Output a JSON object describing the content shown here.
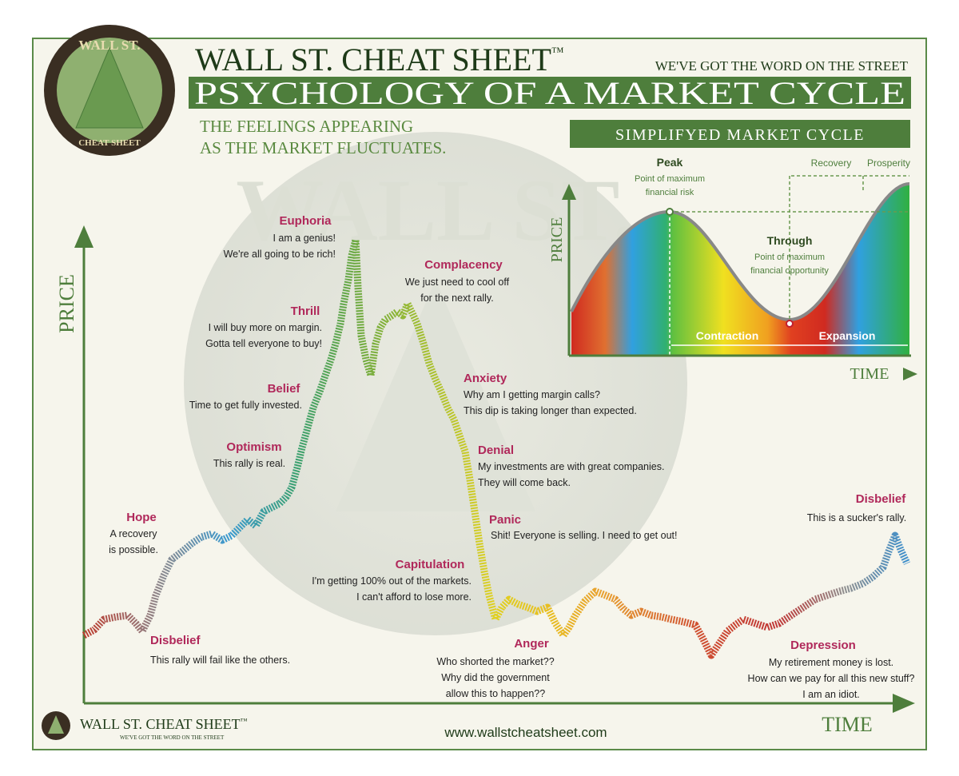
{
  "logo": {
    "top": "WALL ST.",
    "bottom": "CHEAT SHEET"
  },
  "header": {
    "brand": "WALL ST. CHEAT SHEET",
    "trademark": "™",
    "tagline": "WE'VE GOT THE WORD ON THE STREET",
    "title": "PSYCHOLOGY OF A MARKET CYCLE",
    "subtitle": [
      "THE FEELINGS APPEARING",
      "AS THE MARKET FLUCTUATES."
    ]
  },
  "watermark": "WALL ST.",
  "axes": {
    "y": "PRICE",
    "x": "TIME"
  },
  "stages": [
    {
      "title": "Hope",
      "lines": [
        "A recovery",
        "is possible."
      ]
    },
    {
      "title": "Disbelief",
      "lines": [
        "This rally will fail like the others."
      ]
    },
    {
      "title": "Optimism",
      "lines": [
        "This rally is real."
      ]
    },
    {
      "title": "Belief",
      "lines": [
        "Time to get fully invested."
      ]
    },
    {
      "title": "Thrill",
      "lines": [
        "I will buy more on margin.",
        "Gotta tell everyone to buy!"
      ]
    },
    {
      "title": "Euphoria",
      "lines": [
        "I am a genius!",
        "We're all going to be rich!"
      ]
    },
    {
      "title": "Complacency",
      "lines": [
        "We just need to cool off",
        "for the next rally."
      ]
    },
    {
      "title": "Anxiety",
      "lines": [
        "Why am I getting margin calls?",
        "This dip is taking longer than expected."
      ]
    },
    {
      "title": "Denial",
      "lines": [
        "My investments are with great companies.",
        "They will come back."
      ]
    },
    {
      "title": "Panic",
      "lines": [
        "Shit! Everyone is selling. I need to get out!"
      ]
    },
    {
      "title": "Capitulation",
      "lines": [
        "I'm getting 100% out of the markets.",
        "I can't afford to lose more."
      ]
    },
    {
      "title": "Anger",
      "lines": [
        "Who shorted the market??",
        "Why did the government",
        "allow this to happen??"
      ]
    },
    {
      "title": "Depression",
      "lines": [
        "My retirement money is lost.",
        "How can we pay for all this new stuff?",
        "I am an idiot."
      ]
    },
    {
      "title": "Disbelief",
      "lines": [
        "This is a sucker's rally."
      ]
    }
  ],
  "inset": {
    "title": "SIMPLIFYED MARKET CYCLE",
    "peak": {
      "title": "Peak",
      "lines": [
        "Point of maximum",
        "financial risk"
      ]
    },
    "trough": {
      "title": "Through",
      "lines": [
        "Point of maximum",
        "financial opportunity"
      ]
    },
    "recovery": "Recovery",
    "prosperity": "Prosperity",
    "contraction": "Contraction",
    "expansion": "Expansion",
    "y_axis": "PRICE",
    "x_axis": "TIME"
  },
  "footer": {
    "brand": "WALL ST. CHEAT SHEET",
    "trademark": "™",
    "tagline": "WE'VE GOT THE WORD ON THE STREET",
    "url": "www.wallstcheatsheet.com"
  }
}
